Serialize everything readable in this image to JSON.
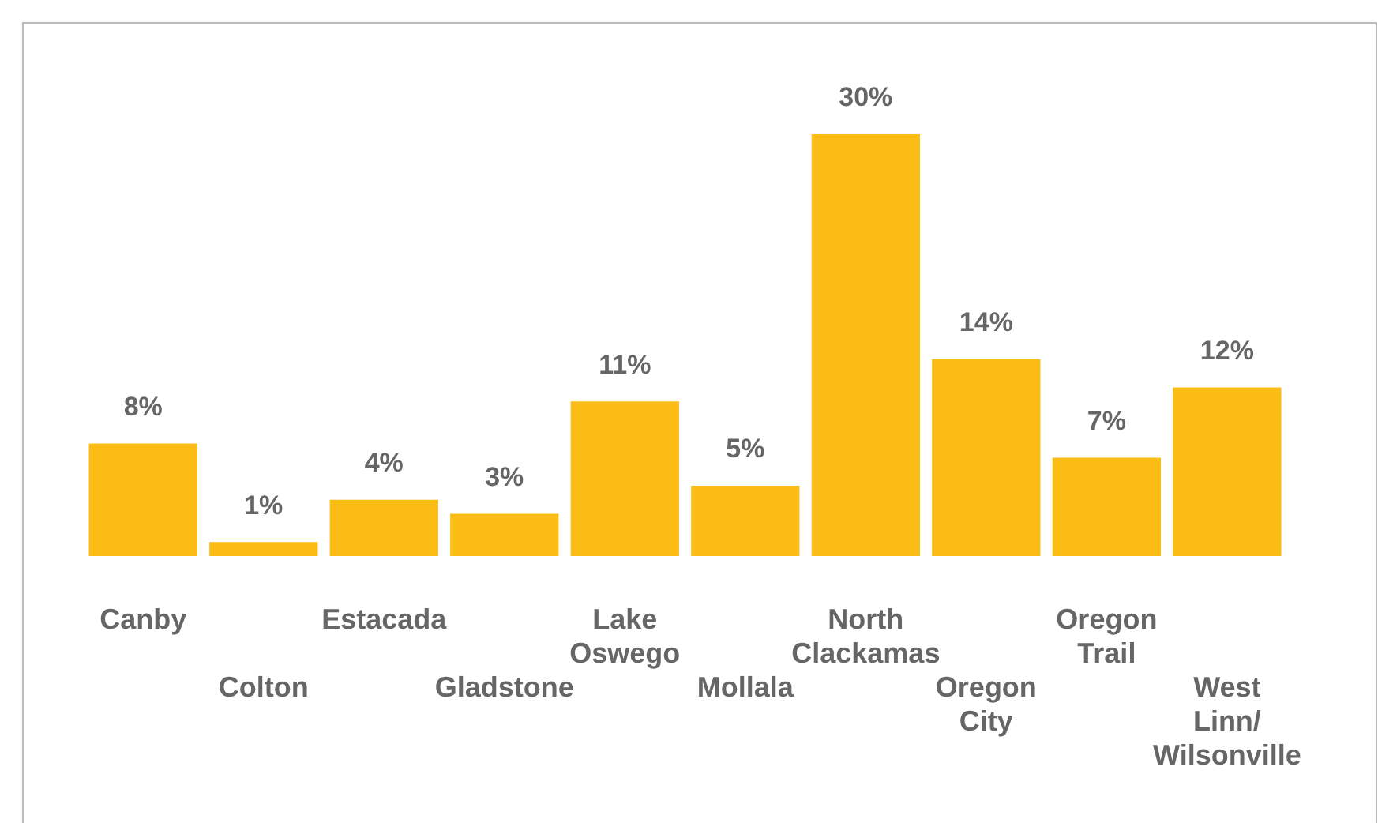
{
  "chart_data": {
    "type": "bar",
    "categories": [
      "Canby",
      "Colton",
      "Estacada",
      "Gladstone",
      "Lake Oswego",
      "Mollala",
      "North Clackamas",
      "Oregon City",
      "Oregon Trail",
      "West Linn/ Wilsonville"
    ],
    "values": [
      8,
      1,
      4,
      3,
      11,
      5,
      30,
      14,
      7,
      12
    ],
    "value_labels": [
      "8%",
      "1%",
      "4%",
      "3%",
      "11%",
      "5%",
      "30%",
      "14%",
      "7%",
      "12%"
    ],
    "color": "#fbbc16",
    "grid": false,
    "legend": false
  }
}
